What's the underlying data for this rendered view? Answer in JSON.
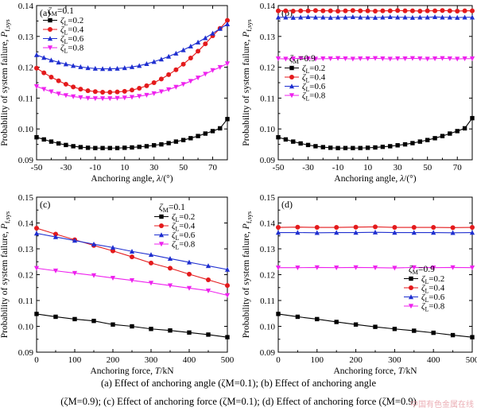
{
  "caption": {
    "line1": "(a) Effect of anchoring angle (ζM=0.1); (b) Effect of anchoring angle",
    "line2": "(ζM=0.9); (c) Effect of anchoring force (ζM=0.1); (d) Effect of anchoring force (ζM=0.9)"
  },
  "watermark": "中国有色金属在线",
  "colors": {
    "s02": "#000000",
    "s04": "#e41a1c",
    "s06": "#1f2fd0",
    "s08": "#ee22ee"
  },
  "chart_data": [
    {
      "panel": "(a)",
      "type": "line",
      "xlabel": "Anchoring angle, λ/(°)",
      "ylabel": "Probability of system failure, Pf,sys",
      "xlim": [
        -50,
        80
      ],
      "ylim": [
        0.09,
        0.14
      ],
      "xticks": [
        "-50",
        "-30",
        "-10",
        "10",
        "30",
        "50",
        "70"
      ],
      "yticks": [
        "0.09",
        "0.10",
        "0.11",
        "0.12",
        "0.13",
        "0.14"
      ],
      "legend_title": "ζM=0.1",
      "legend_position": "top-left",
      "x": [
        -50,
        -45,
        -40,
        -35,
        -30,
        -25,
        -20,
        -15,
        -10,
        -5,
        0,
        5,
        10,
        15,
        20,
        25,
        30,
        35,
        40,
        45,
        50,
        55,
        60,
        65,
        70,
        75,
        80
      ],
      "series": [
        {
          "name": "ζL=0.2",
          "marker": "square",
          "color": "#000000",
          "values": [
            0.0973,
            0.0966,
            0.0959,
            0.0953,
            0.0948,
            0.0944,
            0.0941,
            0.0939,
            0.0938,
            0.0938,
            0.0938,
            0.0938,
            0.0939,
            0.094,
            0.0942,
            0.0944,
            0.0947,
            0.095,
            0.0954,
            0.0959,
            0.0964,
            0.097,
            0.0977,
            0.0985,
            0.0993,
            0.1002,
            0.1032
          ]
        },
        {
          "name": "ζL=0.4",
          "marker": "circle",
          "color": "#e41a1c",
          "values": [
            0.1197,
            0.1182,
            0.1168,
            0.1156,
            0.1145,
            0.1136,
            0.1129,
            0.1124,
            0.1121,
            0.1119,
            0.1119,
            0.112,
            0.1122,
            0.1126,
            0.1132,
            0.114,
            0.115,
            0.1162,
            0.1176,
            0.1192,
            0.121,
            0.123,
            0.1252,
            0.1276,
            0.1302,
            0.1326,
            0.1352
          ]
        },
        {
          "name": "ζL=0.6",
          "marker": "triangle",
          "color": "#1f2fd0",
          "values": [
            0.124,
            0.1231,
            0.1223,
            0.1216,
            0.121,
            0.1205,
            0.1201,
            0.1198,
            0.1196,
            0.1195,
            0.1195,
            0.1196,
            0.1198,
            0.1201,
            0.1205,
            0.1211,
            0.1218,
            0.1226,
            0.1235,
            0.1245,
            0.1256,
            0.1268,
            0.1281,
            0.1295,
            0.131,
            0.1325,
            0.134
          ]
        },
        {
          "name": "ζL=0.8",
          "marker": "triangle-down",
          "color": "#ee22ee",
          "values": [
            0.1138,
            0.1129,
            0.1121,
            0.1114,
            0.1109,
            0.1105,
            0.1102,
            0.11,
            0.1099,
            0.1099,
            0.1099,
            0.11,
            0.1101,
            0.1103,
            0.1106,
            0.111,
            0.1115,
            0.1121,
            0.1128,
            0.1136,
            0.1145,
            0.1155,
            0.1166,
            0.1178,
            0.119,
            0.12,
            0.1212
          ]
        }
      ]
    },
    {
      "panel": "(b)",
      "type": "line",
      "xlabel": "Anchoring angle, λ/(°)",
      "ylabel": "Probability of system failure, Pf,sys",
      "xlim": [
        -50,
        80
      ],
      "ylim": [
        0.09,
        0.14
      ],
      "xticks": [
        "-50",
        "-30",
        "-10",
        "10",
        "30",
        "50",
        "70"
      ],
      "yticks": [
        "0.09",
        "0.10",
        "0.11",
        "0.12",
        "0.13",
        "0.14"
      ],
      "legend_title": "ζM=0.9",
      "legend_position": "middle-left",
      "x": [
        -50,
        -45,
        -40,
        -35,
        -30,
        -25,
        -20,
        -15,
        -10,
        -5,
        0,
        5,
        10,
        15,
        20,
        25,
        30,
        35,
        40,
        45,
        50,
        55,
        60,
        65,
        70,
        75,
        80
      ],
      "series": [
        {
          "name": "ζL=0.2",
          "marker": "square",
          "color": "#000000",
          "values": [
            0.0973,
            0.0966,
            0.0959,
            0.0953,
            0.0948,
            0.0944,
            0.0941,
            0.0939,
            0.0938,
            0.0938,
            0.0938,
            0.0938,
            0.0939,
            0.094,
            0.0942,
            0.0944,
            0.0947,
            0.095,
            0.0954,
            0.0959,
            0.0964,
            0.097,
            0.0977,
            0.0985,
            0.0993,
            0.1002,
            0.1035
          ]
        },
        {
          "name": "ζL=0.4",
          "marker": "circle",
          "color": "#e41a1c",
          "values": [
            0.1383,
            0.1383,
            0.1382,
            0.1383,
            0.1383,
            0.1384,
            0.1383,
            0.1383,
            0.1382,
            0.1383,
            0.1384,
            0.1383,
            0.1383,
            0.1382,
            0.1383,
            0.1383,
            0.1384,
            0.1383,
            0.1383,
            0.1382,
            0.1383,
            0.1383,
            0.1384,
            0.1383,
            0.1382,
            0.1383,
            0.1383
          ]
        },
        {
          "name": "ζL=0.6",
          "marker": "triangle",
          "color": "#1f2fd0",
          "values": [
            0.1362,
            0.1362,
            0.1361,
            0.1362,
            0.1363,
            0.1362,
            0.1362,
            0.1361,
            0.1362,
            0.1362,
            0.1363,
            0.1362,
            0.1362,
            0.1361,
            0.1362,
            0.1363,
            0.1362,
            0.1362,
            0.1361,
            0.1362,
            0.1362,
            0.1363,
            0.1362,
            0.1362,
            0.1361,
            0.1362,
            0.1362
          ]
        },
        {
          "name": "ζL=0.8",
          "marker": "triangle-down",
          "color": "#ee22ee",
          "values": [
            0.1228,
            0.1227,
            0.1228,
            0.1229,
            0.1228,
            0.1227,
            0.1228,
            0.1228,
            0.1229,
            0.1228,
            0.1227,
            0.1228,
            0.1228,
            0.1229,
            0.1228,
            0.1227,
            0.1228,
            0.1228,
            0.1229,
            0.1228,
            0.1227,
            0.1228,
            0.1229,
            0.1228,
            0.1227,
            0.1228,
            0.1228
          ]
        }
      ]
    },
    {
      "panel": "(c)",
      "type": "line",
      "xlabel": "Anchoring force, T/kN",
      "ylabel": "Probability of system failure, Pf,sys",
      "xlim": [
        0,
        500
      ],
      "ylim": [
        0.09,
        0.15
      ],
      "xticks": [
        "0",
        "100",
        "200",
        "300",
        "400",
        "500"
      ],
      "yticks": [
        "0.09",
        "0.10",
        "0.11",
        "0.12",
        "0.13",
        "0.14",
        "0.15"
      ],
      "legend_title": "ζM=0.1",
      "legend_position": "top-right",
      "x": [
        0,
        50,
        100,
        150,
        200,
        250,
        300,
        350,
        400,
        450,
        500
      ],
      "series": [
        {
          "name": "ζL=0.2",
          "marker": "square",
          "color": "#000000",
          "values": [
            0.1048,
            0.1037,
            0.1028,
            0.1021,
            0.1007,
            0.1,
            0.099,
            0.0984,
            0.0976,
            0.0968,
            0.0958
          ]
        },
        {
          "name": "ζL=0.4",
          "marker": "circle",
          "color": "#e41a1c",
          "values": [
            0.138,
            0.1357,
            0.1335,
            0.1313,
            0.1292,
            0.1269,
            0.1245,
            0.1225,
            0.1202,
            0.118,
            0.1158
          ]
        },
        {
          "name": "ζL=0.6",
          "marker": "triangle",
          "color": "#1f2fd0",
          "values": [
            0.136,
            0.1346,
            0.1332,
            0.1318,
            0.1305,
            0.129,
            0.1277,
            0.1262,
            0.1248,
            0.1234,
            0.122
          ]
        },
        {
          "name": "ζL=0.8",
          "marker": "triangle-down",
          "color": "#ee22ee",
          "values": [
            0.1225,
            0.1215,
            0.1206,
            0.1197,
            0.1187,
            0.1178,
            0.1168,
            0.1158,
            0.1148,
            0.1138,
            0.112
          ]
        }
      ]
    },
    {
      "panel": "(d)",
      "type": "line",
      "xlabel": "Anchoring force, T/kN",
      "ylabel": "Probability of system failure, Pf,sys",
      "xlim": [
        0,
        500
      ],
      "ylim": [
        0.09,
        0.15
      ],
      "xticks": [
        "0",
        "100",
        "200",
        "300",
        "400",
        "500"
      ],
      "yticks": [
        "0.09",
        "0.10",
        "0.11",
        "0.12",
        "0.13",
        "0.14",
        "0.15"
      ],
      "legend_title": "ζM=0.9",
      "legend_position": "middle-right",
      "x": [
        0,
        50,
        100,
        150,
        200,
        250,
        300,
        350,
        400,
        450,
        500
      ],
      "series": [
        {
          "name": "ζL=0.2",
          "marker": "square",
          "color": "#000000",
          "values": [
            0.1048,
            0.1037,
            0.1028,
            0.1017,
            0.1007,
            0.0998,
            0.099,
            0.0983,
            0.0975,
            0.0966,
            0.0958
          ]
        },
        {
          "name": "ζL=0.4",
          "marker": "circle",
          "color": "#e41a1c",
          "values": [
            0.1383,
            0.1384,
            0.1383,
            0.1383,
            0.1384,
            0.1385,
            0.1383,
            0.1383,
            0.1383,
            0.1382,
            0.1383
          ]
        },
        {
          "name": "ζL=0.6",
          "marker": "triangle",
          "color": "#1f2fd0",
          "values": [
            0.1363,
            0.1363,
            0.1362,
            0.1363,
            0.1363,
            0.1364,
            0.1363,
            0.1363,
            0.1363,
            0.1362,
            0.1363
          ]
        },
        {
          "name": "ζL=0.8",
          "marker": "triangle-down",
          "color": "#ee22ee",
          "values": [
            0.1227,
            0.1227,
            0.1228,
            0.1227,
            0.1228,
            0.1227,
            0.1226,
            0.1228,
            0.1227,
            0.1228,
            0.1227
          ]
        }
      ]
    }
  ]
}
